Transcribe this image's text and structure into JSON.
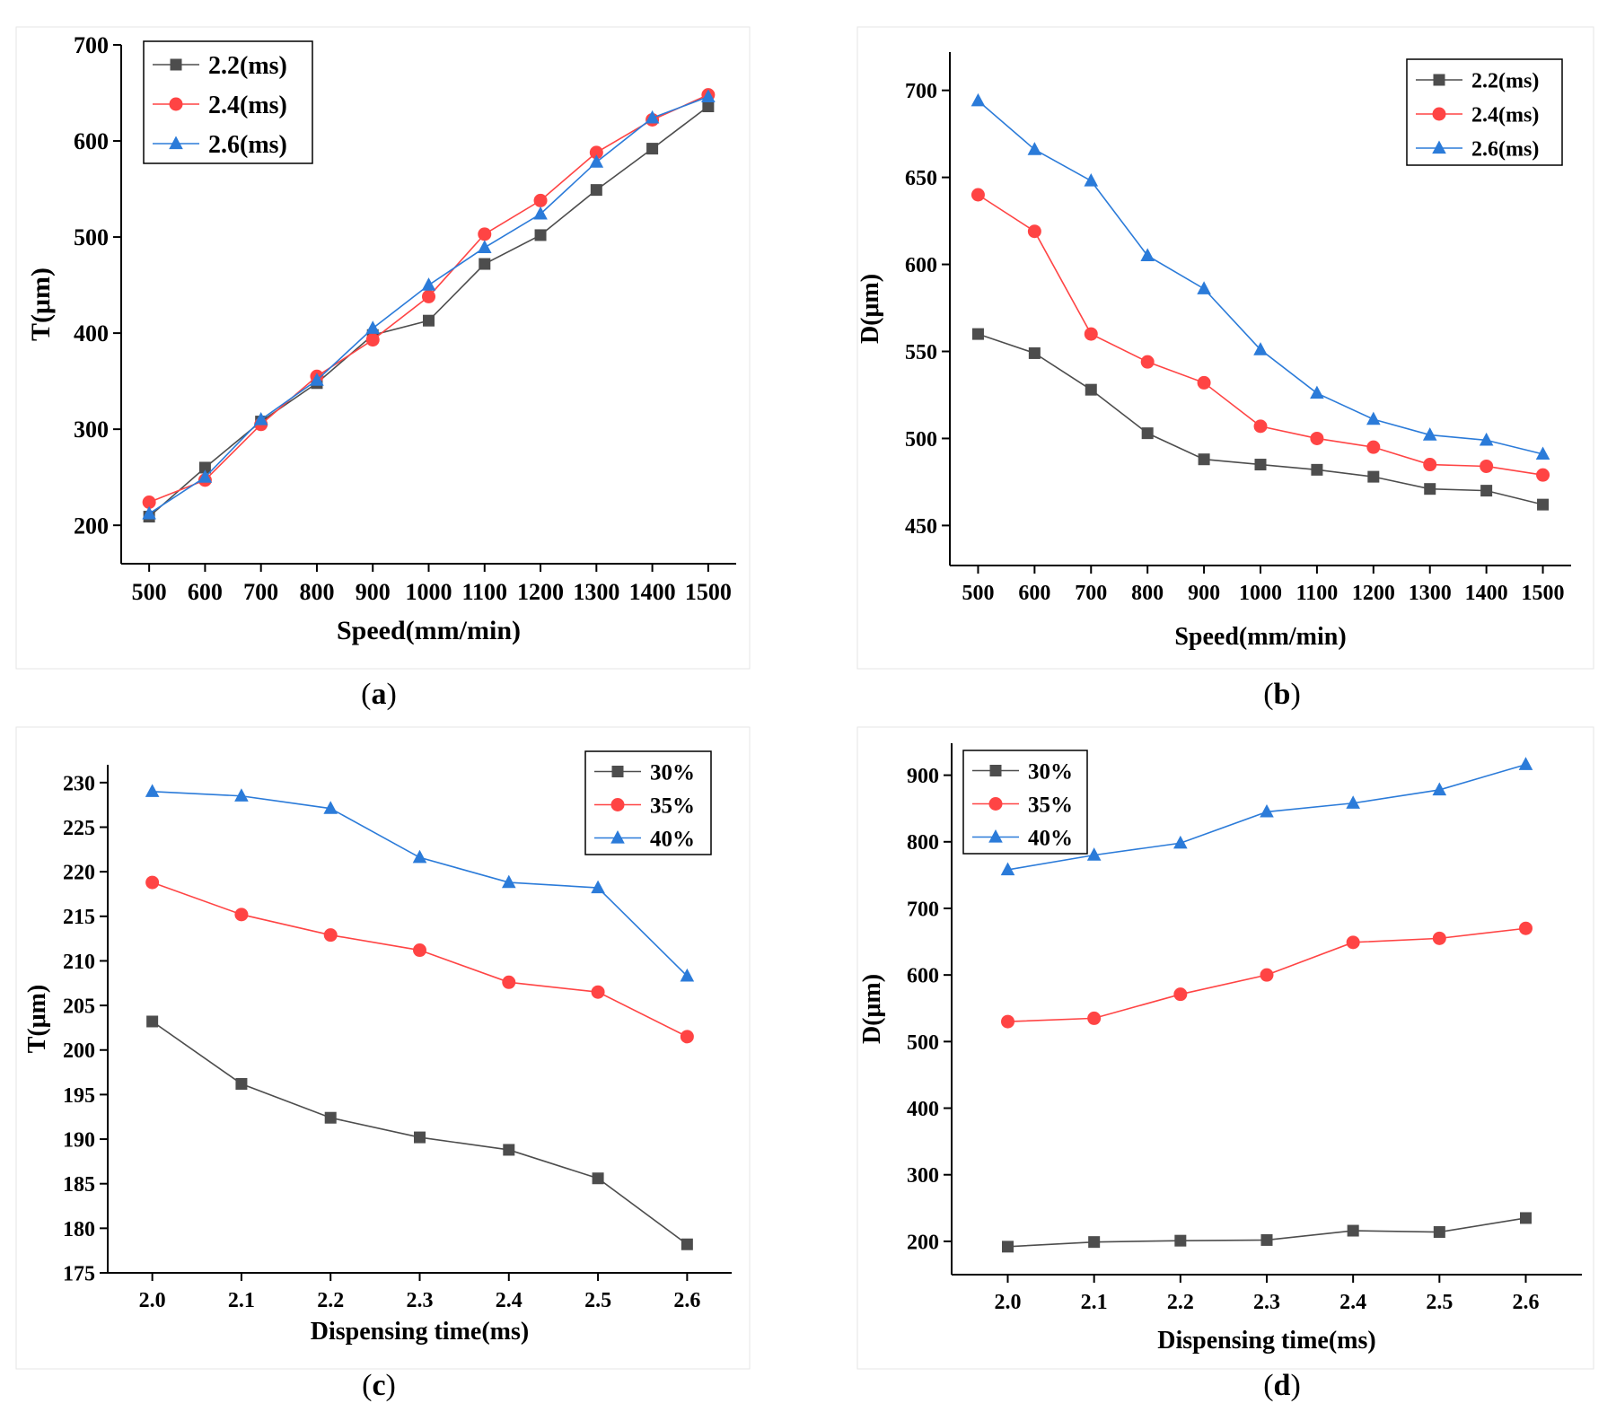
{
  "chart_data": [
    {
      "id": "a",
      "type": "line",
      "caption": "a",
      "x": [
        500,
        600,
        700,
        800,
        900,
        1000,
        1100,
        1200,
        1300,
        1400,
        1500
      ],
      "xticks": [
        "500",
        "600",
        "700",
        "800",
        "900",
        "1000",
        "1100",
        "1200",
        "1300",
        "1400",
        "1500"
      ],
      "yticks": [
        "200",
        "300",
        "400",
        "500",
        "600",
        "700"
      ],
      "xlabel": "Speed(mm/min)",
      "ylabel": "T(μm)",
      "xlim": [
        450,
        1550
      ],
      "ylim": [
        160,
        700
      ],
      "legend_position": "top-left",
      "series": [
        {
          "name": "2.2(ms)",
          "color": "#4d4d4d",
          "marker": "square",
          "values": [
            209,
            260,
            308,
            348,
            398,
            413,
            472,
            502,
            549,
            592,
            636
          ]
        },
        {
          "name": "2.4(ms)",
          "color": "#ff4444",
          "marker": "circle",
          "values": [
            224,
            247,
            305,
            355,
            393,
            438,
            503,
            538,
            588,
            622,
            648
          ]
        },
        {
          "name": "2.6(ms)",
          "color": "#2b7bd9",
          "marker": "triangle",
          "values": [
            212,
            250,
            310,
            351,
            405,
            450,
            489,
            524,
            578,
            624,
            646
          ]
        }
      ]
    },
    {
      "id": "b",
      "type": "line",
      "caption": "b",
      "x": [
        500,
        600,
        700,
        800,
        900,
        1000,
        1100,
        1200,
        1300,
        1400,
        1500
      ],
      "xticks": [
        "500",
        "600",
        "700",
        "800",
        "900",
        "1000",
        "1100",
        "1200",
        "1300",
        "1400",
        "1500"
      ],
      "yticks": [
        "450",
        "500",
        "550",
        "600",
        "650",
        "700"
      ],
      "xlabel": "Speed(mm/min)",
      "ylabel": "D(μm)",
      "xlim": [
        450,
        1550
      ],
      "ylim": [
        427,
        722
      ],
      "legend_position": "top-right",
      "series": [
        {
          "name": "2.2(ms)",
          "color": "#4d4d4d",
          "marker": "square",
          "values": [
            560,
            549,
            528,
            503,
            488,
            485,
            482,
            478,
            471,
            470,
            462
          ]
        },
        {
          "name": "2.4(ms)",
          "color": "#ff4444",
          "marker": "circle",
          "values": [
            640,
            619,
            560,
            544,
            532,
            507,
            500,
            495,
            485,
            484,
            479
          ]
        },
        {
          "name": "2.6(ms)",
          "color": "#2b7bd9",
          "marker": "triangle",
          "values": [
            694,
            666,
            648,
            605,
            586,
            551,
            526,
            511,
            502,
            499,
            491
          ]
        }
      ]
    },
    {
      "id": "c",
      "type": "line",
      "caption": "c",
      "x": [
        2.0,
        2.1,
        2.2,
        2.3,
        2.4,
        2.5,
        2.6
      ],
      "xticks": [
        "2.0",
        "2.1",
        "2.2",
        "2.3",
        "2.4",
        "2.5",
        "2.6"
      ],
      "yticks": [
        "175",
        "180",
        "185",
        "190",
        "195",
        "200",
        "205",
        "210",
        "215",
        "220",
        "225",
        "230"
      ],
      "xlabel": "Dispensing time(ms)",
      "ylabel": "T(μm)",
      "xlim": [
        1.95,
        2.65
      ],
      "ylim": [
        175,
        232
      ],
      "legend_position": "top-right",
      "series": [
        {
          "name": "30%",
          "color": "#4d4d4d",
          "marker": "square",
          "values": [
            203.2,
            196.2,
            192.4,
            190.2,
            188.8,
            185.6,
            178.2
          ]
        },
        {
          "name": "35%",
          "color": "#ff4444",
          "marker": "circle",
          "values": [
            218.8,
            215.2,
            212.9,
            211.2,
            207.6,
            206.5,
            201.5
          ]
        },
        {
          "name": "40%",
          "color": "#2b7bd9",
          "marker": "triangle",
          "values": [
            229.0,
            228.5,
            227.1,
            221.6,
            218.8,
            218.2,
            208.3
          ]
        }
      ]
    },
    {
      "id": "d",
      "type": "line",
      "caption": "d",
      "x": [
        2.0,
        2.1,
        2.2,
        2.3,
        2.4,
        2.5,
        2.6
      ],
      "xticks": [
        "2.0",
        "2.1",
        "2.2",
        "2.3",
        "2.4",
        "2.5",
        "2.6"
      ],
      "yticks": [
        "200",
        "300",
        "400",
        "500",
        "600",
        "700",
        "800",
        "900"
      ],
      "xlabel": "Dispensing time(ms)",
      "ylabel": "D(μm)",
      "xlim": [
        1.935,
        2.665
      ],
      "ylim": [
        150,
        948
      ],
      "legend_position": "top-left",
      "series": [
        {
          "name": "30%",
          "color": "#4d4d4d",
          "marker": "square",
          "values": [
            192,
            199,
            201,
            202,
            216,
            214,
            235
          ]
        },
        {
          "name": "35%",
          "color": "#ff4444",
          "marker": "circle",
          "values": [
            530,
            535,
            571,
            600,
            649,
            655,
            670
          ]
        },
        {
          "name": "40%",
          "color": "#2b7bd9",
          "marker": "triangle",
          "values": [
            758,
            780,
            798,
            845,
            858,
            878,
            916
          ]
        }
      ]
    }
  ]
}
